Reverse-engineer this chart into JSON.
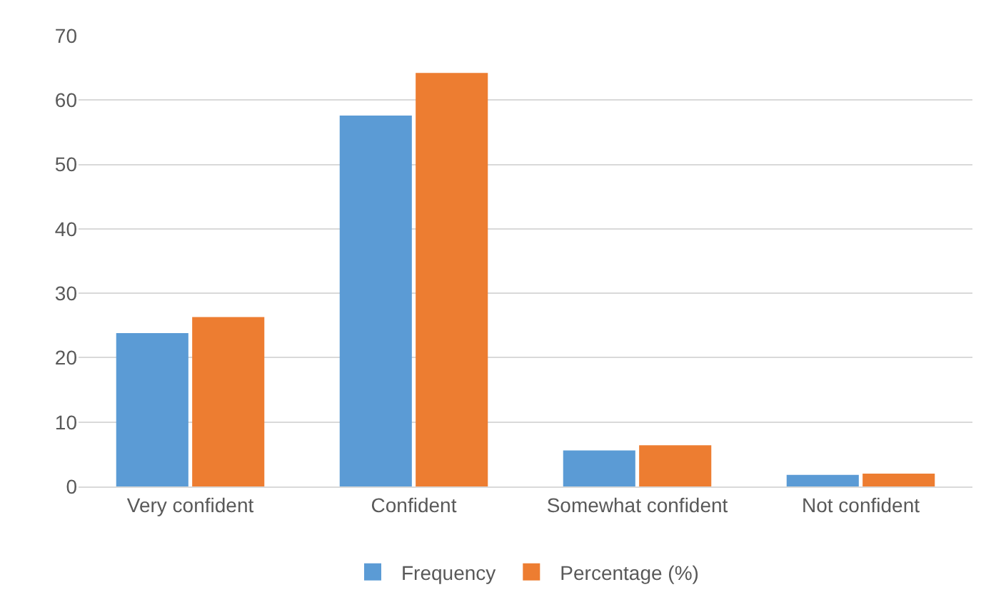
{
  "chart_data": {
    "type": "bar",
    "categories": [
      "Very confident",
      "Confident",
      "Somewhat confident",
      "Not confident"
    ],
    "series": [
      {
        "name": "Frequency",
        "color": "#5b9bd5",
        "values": [
          23.8,
          57.6,
          5.6,
          1.8
        ]
      },
      {
        "name": "Percentage (%)",
        "color": "#ed7d31",
        "values": [
          26.3,
          64.2,
          6.4,
          2.0
        ]
      }
    ],
    "ylim": [
      0,
      70
    ],
    "yticks": [
      0,
      10,
      20,
      30,
      40,
      50,
      60,
      70
    ],
    "grid": "y",
    "legend": "bottom"
  }
}
